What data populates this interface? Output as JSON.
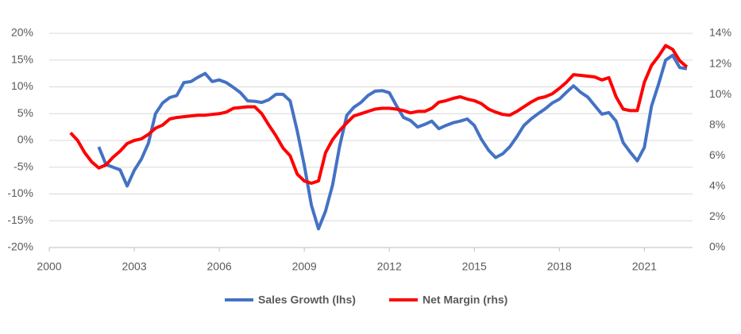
{
  "chart_data": {
    "type": "line",
    "x": [
      2000.75,
      2001,
      2001.25,
      2001.5,
      2001.75,
      2002,
      2002.25,
      2002.5,
      2002.75,
      2003,
      2003.25,
      2003.5,
      2003.75,
      2004,
      2004.25,
      2004.5,
      2004.75,
      2005,
      2005.25,
      2005.5,
      2005.75,
      2006,
      2006.25,
      2006.5,
      2006.75,
      2007,
      2007.25,
      2007.5,
      2007.75,
      2008,
      2008.25,
      2008.5,
      2008.75,
      2009,
      2009.25,
      2009.5,
      2009.75,
      2010,
      2010.25,
      2010.5,
      2010.75,
      2011,
      2011.25,
      2011.5,
      2011.75,
      2012,
      2012.25,
      2012.5,
      2012.75,
      2013,
      2013.25,
      2013.5,
      2013.75,
      2014,
      2014.25,
      2014.5,
      2014.75,
      2015,
      2015.25,
      2015.5,
      2015.75,
      2016,
      2016.25,
      2016.5,
      2016.75,
      2017,
      2017.25,
      2017.5,
      2017.75,
      2018,
      2018.25,
      2018.5,
      2018.75,
      2019,
      2019.25,
      2019.5,
      2019.75,
      2020,
      2020.25,
      2020.5,
      2020.75,
      2021,
      2021.25,
      2021.5,
      2021.75,
      2022,
      2022.25,
      2022.5
    ],
    "series": [
      {
        "name": "Sales Growth (lhs)",
        "color": "#4472c4",
        "values": [
          null,
          null,
          null,
          null,
          -1.2,
          -4.5,
          -5.0,
          -5.5,
          -8.5,
          -5.6,
          -3.5,
          -0.5,
          5.0,
          7.0,
          8.0,
          8.4,
          10.8,
          11.0,
          11.8,
          12.5,
          11.0,
          11.3,
          10.8,
          9.9,
          8.9,
          7.4,
          7.3,
          7.1,
          7.6,
          8.6,
          8.6,
          7.4,
          1.8,
          -4.6,
          -12.1,
          -16.5,
          -13.2,
          -8.3,
          -1.0,
          4.7,
          6.2,
          7.1,
          8.4,
          9.2,
          9.3,
          8.9,
          6.5,
          4.3,
          3.7,
          2.5,
          3.0,
          3.6,
          2.2,
          2.8,
          3.3,
          3.6,
          4.0,
          2.8,
          0.2,
          -1.8,
          -3.2,
          -2.5,
          -1.2,
          0.7,
          2.8,
          4.0,
          5.0,
          5.9,
          7.0,
          7.7,
          9.0,
          10.2,
          9.0,
          8.1,
          6.5,
          4.9,
          5.2,
          3.6,
          -0.4,
          -2.2,
          -3.8,
          -1.3,
          6.4,
          10.5,
          15.0,
          15.9,
          13.6,
          13.4
        ]
      },
      {
        "name": "Net Margin (rhs)",
        "color": "#ff0000",
        "axis": "y2",
        "values": [
          7.5,
          7.0,
          6.2,
          5.6,
          5.2,
          5.4,
          5.9,
          6.3,
          6.8,
          7.0,
          7.1,
          7.4,
          7.8,
          8.0,
          8.4,
          8.5,
          8.55,
          8.6,
          8.65,
          8.65,
          8.7,
          8.75,
          8.85,
          9.1,
          9.15,
          9.2,
          9.2,
          8.75,
          8.0,
          7.3,
          6.5,
          6.0,
          4.8,
          4.35,
          4.2,
          4.35,
          6.2,
          7.05,
          7.65,
          8.15,
          8.6,
          8.75,
          8.9,
          9.05,
          9.1,
          9.1,
          9.05,
          8.95,
          8.8,
          8.9,
          8.9,
          9.1,
          9.5,
          9.6,
          9.75,
          9.85,
          9.7,
          9.6,
          9.4,
          9.05,
          8.85,
          8.7,
          8.65,
          8.9,
          9.2,
          9.5,
          9.75,
          9.85,
          10.05,
          10.4,
          10.8,
          11.3,
          11.25,
          11.2,
          11.15,
          10.95,
          11.1,
          9.85,
          9.05,
          8.95,
          8.95,
          10.8,
          11.9,
          12.5,
          13.2,
          12.95,
          12.2,
          11.8
        ]
      }
    ],
    "xlim": [
      2000,
      2022.7
    ],
    "xticks": [
      2000,
      2003,
      2006,
      2009,
      2012,
      2015,
      2018,
      2021
    ],
    "ylim": [
      -20,
      20
    ],
    "yticks": [
      {
        "value": -20,
        "label": "-20%"
      },
      {
        "value": -15,
        "label": "-15%"
      },
      {
        "value": -10,
        "label": "-10%"
      },
      {
        "value": -5,
        "label": "-5%"
      },
      {
        "value": 0,
        "label": "0%"
      },
      {
        "value": 5,
        "label": "5%"
      },
      {
        "value": 10,
        "label": "10%"
      },
      {
        "value": 15,
        "label": "15%"
      },
      {
        "value": 20,
        "label": "20%"
      }
    ],
    "y2lim": [
      0,
      14
    ],
    "y2ticks": [
      {
        "value": 0,
        "label": "0%"
      },
      {
        "value": 2,
        "label": "2%"
      },
      {
        "value": 4,
        "label": "4%"
      },
      {
        "value": 6,
        "label": "6%"
      },
      {
        "value": 8,
        "label": "8%"
      },
      {
        "value": 10,
        "label": "10%"
      },
      {
        "value": 12,
        "label": "12%"
      },
      {
        "value": 14,
        "label": "14%"
      }
    ],
    "grid": true,
    "legend": "bottom"
  }
}
